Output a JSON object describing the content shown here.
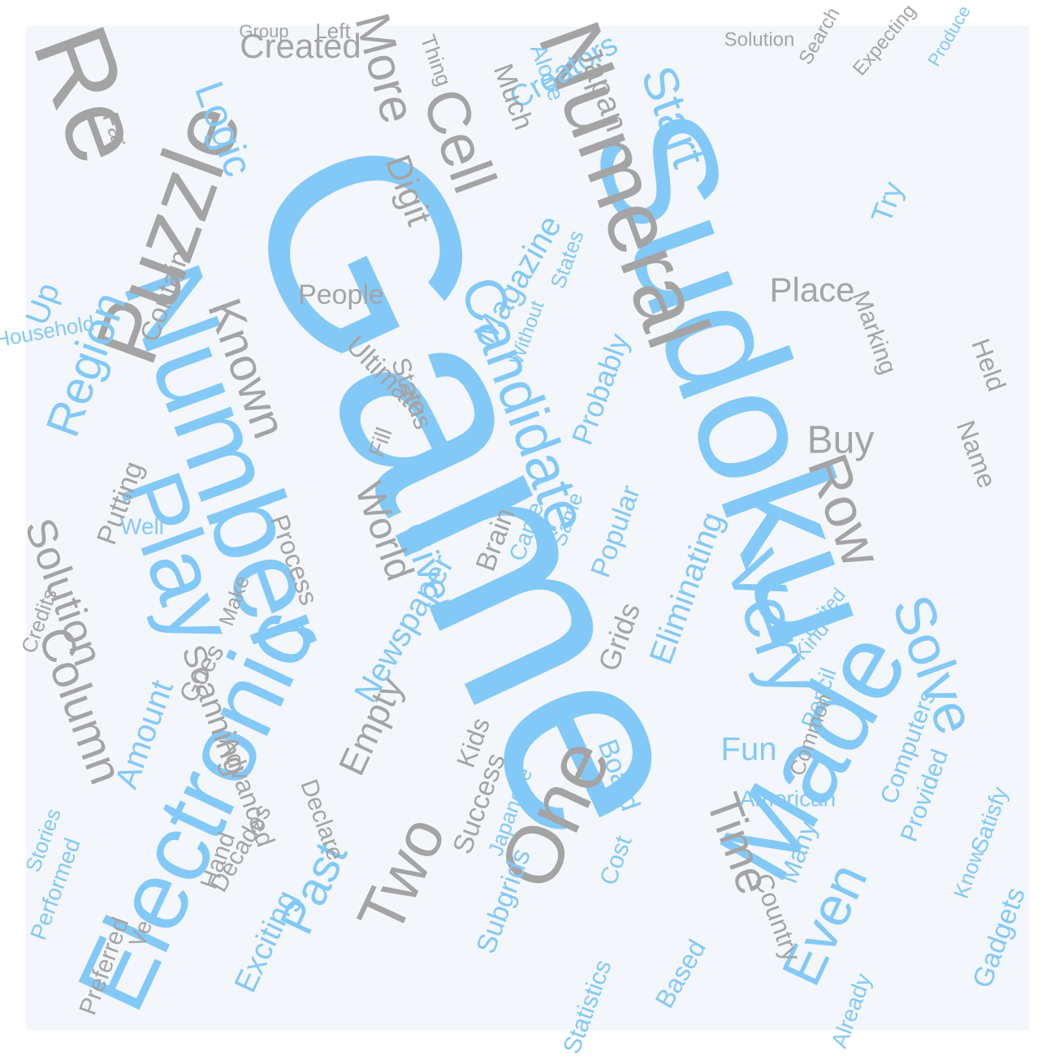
{
  "words": [
    "Game",
    "Sudoku",
    "Number",
    "Puzzle",
    "Re",
    "Electronic",
    "Play",
    "Made",
    "Numeral",
    "Candidate",
    "Very",
    "One",
    "Two",
    "Past",
    "Solve",
    "Even",
    "Row",
    "Start",
    "Cell",
    "Logic",
    "More",
    "Created",
    "Region",
    "Known",
    "Column",
    "Solution",
    "Time",
    "Empty",
    "Creators",
    "Magazine",
    "Newspaper",
    "World",
    "Given",
    "Eliminating",
    "Japan",
    "Buy",
    "Fun",
    "Board",
    "Grids",
    "Scanning",
    "Digit",
    "Amount",
    "Exciting",
    "Subgrids",
    "Gadgets",
    "People",
    "Ultimate",
    "Brain",
    "Probably",
    "Popular",
    "Kids",
    "Success",
    "Advanced",
    "Up",
    "Place",
    "Marking",
    "Try",
    "Contain",
    "Putting",
    "Process",
    "Goes",
    "Decades",
    "Cost",
    "Country",
    "Many",
    "Based",
    "Already",
    "Declare",
    "Hand",
    "Preferred",
    "Performed",
    "Satisfy",
    "Computers",
    "Provided",
    "Name",
    "Held",
    "Pencil",
    "Status",
    "Fill",
    "Much",
    "Alone",
    "Thing",
    "Household",
    "Statistics",
    "Japanese",
    "Came",
    "Same",
    "Far",
    "Make",
    "Ve",
    "Well",
    "Credits",
    "Stories",
    "Know",
    "American",
    "Kind",
    "United",
    "Common",
    "States",
    "Without",
    "Left",
    "Group",
    "Search",
    "Produce",
    "Expecting",
    "Solution"
  ]
}
